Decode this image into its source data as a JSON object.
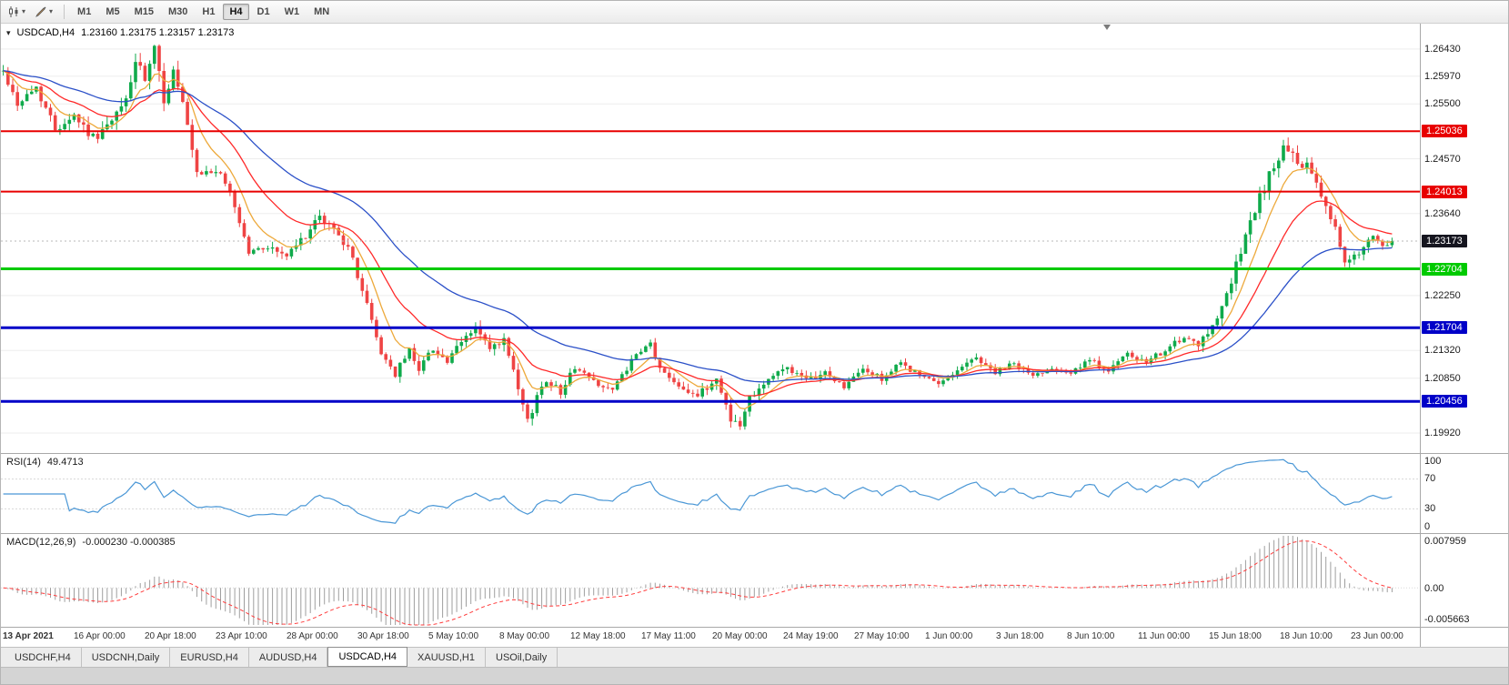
{
  "toolbar": {
    "icons": [
      "chart-type-icon",
      "drawing-tools-icon"
    ],
    "timeframes": [
      {
        "label": "M1",
        "active": false
      },
      {
        "label": "M5",
        "active": false
      },
      {
        "label": "M15",
        "active": false
      },
      {
        "label": "M30",
        "active": false
      },
      {
        "label": "H1",
        "active": false
      },
      {
        "label": "H4",
        "active": true
      },
      {
        "label": "D1",
        "active": false
      },
      {
        "label": "W1",
        "active": false
      },
      {
        "label": "MN",
        "active": false
      }
    ]
  },
  "chart": {
    "symbol_period": "USDCAD,H4",
    "ohlc": "1.23160 1.23175 1.23157 1.23173",
    "axis_min": 1.1958,
    "axis_max": 1.2686,
    "axis_ticks": [
      "1.26430",
      "1.25970",
      "1.25500",
      "1.24570",
      "1.23640",
      "1.22250",
      "1.21320",
      "1.20850",
      "1.19920"
    ],
    "hlines": [
      {
        "price": 1.25036,
        "label": "1.25036",
        "color": "#e80000",
        "width": 2
      },
      {
        "price": 1.24013,
        "label": "1.24013",
        "color": "#e80000",
        "width": 2
      },
      {
        "price": 1.22704,
        "label": "1.22704",
        "color": "#00ca00",
        "width": 3
      },
      {
        "price": 1.21704,
        "label": "1.21704",
        "color": "#0000c8",
        "width": 3
      },
      {
        "price": 1.20456,
        "label": "1.20456",
        "color": "#0000c8",
        "width": 3
      }
    ],
    "current_price": {
      "value": 1.23173,
      "label": "1.23173",
      "color": "#15151f"
    },
    "up_color": "#0faa4b",
    "down_color": "#ef4444",
    "mas": [
      {
        "period": 8,
        "color": "#eda93b"
      },
      {
        "period": 20,
        "color": "#ff2a2a"
      },
      {
        "period": 45,
        "color": "#2b50c8"
      }
    ]
  },
  "chart_data": {
    "type": "candlestick",
    "symbol": "USDCAD",
    "timeframe": "H4",
    "bars": 295,
    "seed": 42,
    "right_gap": 28,
    "y_range": [
      1.1958,
      1.2686
    ],
    "x_labels": [
      "13 Apr 2021",
      "16 Apr 00:00",
      "20 Apr 18:00",
      "23 Apr 10:00",
      "28 Apr 00:00",
      "30 Apr 18:00",
      "5 May 10:00",
      "8 May 00:00",
      "12 May 18:00",
      "17 May 11:00",
      "20 May 00:00",
      "24 May 19:00",
      "27 May 10:00",
      "1 Jun 00:00",
      "3 Jun 18:00",
      "8 Jun 10:00",
      "11 Jun 00:00",
      "15 Jun 18:00",
      "18 Jun 10:00",
      "23 Jun 00:00"
    ],
    "close_keypoints": [
      [
        0,
        1.2605
      ],
      [
        3,
        1.255
      ],
      [
        7,
        1.2578
      ],
      [
        11,
        1.2508
      ],
      [
        15,
        1.2532
      ],
      [
        19,
        1.2492
      ],
      [
        23,
        1.2518
      ],
      [
        26,
        1.2558
      ],
      [
        28,
        1.2622
      ],
      [
        30,
        1.2588
      ],
      [
        32,
        1.264
      ],
      [
        34,
        1.2558
      ],
      [
        36,
        1.2605
      ],
      [
        38,
        1.2548
      ],
      [
        41,
        1.2428
      ],
      [
        45,
        1.2438
      ],
      [
        48,
        1.2402
      ],
      [
        52,
        1.2298
      ],
      [
        56,
        1.2308
      ],
      [
        60,
        1.2292
      ],
      [
        63,
        1.2318
      ],
      [
        67,
        1.2356
      ],
      [
        71,
        1.2332
      ],
      [
        74,
        1.2286
      ],
      [
        77,
        1.2208
      ],
      [
        80,
        1.2128
      ],
      [
        83,
        1.2092
      ],
      [
        86,
        1.2132
      ],
      [
        88,
        1.2102
      ],
      [
        91,
        1.2136
      ],
      [
        94,
        1.2112
      ],
      [
        97,
        1.2146
      ],
      [
        100,
        1.2172
      ],
      [
        103,
        1.2132
      ],
      [
        106,
        1.2148
      ],
      [
        109,
        1.2064
      ],
      [
        111,
        1.201
      ],
      [
        113,
        1.2054
      ],
      [
        115,
        1.2084
      ],
      [
        118,
        1.2062
      ],
      [
        121,
        1.2104
      ],
      [
        125,
        1.208
      ],
      [
        129,
        1.2064
      ],
      [
        133,
        1.2114
      ],
      [
        137,
        1.2144
      ],
      [
        139,
        1.21
      ],
      [
        143,
        1.2074
      ],
      [
        147,
        1.2054
      ],
      [
        151,
        1.2084
      ],
      [
        154,
        1.2018
      ],
      [
        156,
        1.2002
      ],
      [
        158,
        1.2054
      ],
      [
        162,
        1.2084
      ],
      [
        166,
        1.2104
      ],
      [
        170,
        1.208
      ],
      [
        174,
        1.2094
      ],
      [
        178,
        1.207
      ],
      [
        182,
        1.21
      ],
      [
        186,
        1.2084
      ],
      [
        190,
        1.211
      ],
      [
        194,
        1.209
      ],
      [
        198,
        1.2074
      ],
      [
        202,
        1.21
      ],
      [
        206,
        1.212
      ],
      [
        210,
        1.2094
      ],
      [
        214,
        1.211
      ],
      [
        218,
        1.2088
      ],
      [
        222,
        1.2104
      ],
      [
        226,
        1.2094
      ],
      [
        230,
        1.2114
      ],
      [
        234,
        1.21
      ],
      [
        238,
        1.2124
      ],
      [
        242,
        1.211
      ],
      [
        246,
        1.2134
      ],
      [
        250,
        1.2152
      ],
      [
        253,
        1.2138
      ],
      [
        256,
        1.2176
      ],
      [
        259,
        1.2225
      ],
      [
        262,
        1.23
      ],
      [
        265,
        1.237
      ],
      [
        268,
        1.243
      ],
      [
        270,
        1.2462
      ],
      [
        272,
        1.2478
      ],
      [
        274,
        1.244
      ],
      [
        276,
        1.2448
      ],
      [
        278,
        1.241
      ],
      [
        280,
        1.2378
      ],
      [
        282,
        1.234
      ],
      [
        284,
        1.2278
      ],
      [
        286,
        1.229
      ],
      [
        288,
        1.2308
      ],
      [
        290,
        1.2322
      ],
      [
        292,
        1.2306
      ],
      [
        294,
        1.23173
      ]
    ],
    "volatility_keypoints": [
      [
        0,
        0.0014
      ],
      [
        26,
        0.002
      ],
      [
        34,
        0.0024
      ],
      [
        45,
        0.0014
      ],
      [
        60,
        0.0013
      ],
      [
        77,
        0.0017
      ],
      [
        90,
        0.0012
      ],
      [
        100,
        0.0013
      ],
      [
        109,
        0.0018
      ],
      [
        120,
        0.0011
      ],
      [
        140,
        0.001
      ],
      [
        154,
        0.0017
      ],
      [
        165,
        0.0011
      ],
      [
        200,
        0.0009
      ],
      [
        246,
        0.0011
      ],
      [
        258,
        0.0016
      ],
      [
        268,
        0.0022
      ],
      [
        276,
        0.002
      ],
      [
        286,
        0.0014
      ],
      [
        294,
        0.001
      ]
    ]
  },
  "rsi_panel": {
    "title": "RSI(14)",
    "value": "49.4713",
    "period": 14,
    "line_color": "#4a97d6",
    "levels": [
      {
        "value": 100,
        "label": "100",
        "dashed": false
      },
      {
        "value": 70,
        "label": "70",
        "dashed": true
      },
      {
        "value": 30,
        "label": "30",
        "dashed": true
      },
      {
        "value": 0,
        "label": "0",
        "dashed": false
      }
    ]
  },
  "macd_panel": {
    "title": "MACD(12,26,9)",
    "values": "-0.000230 -0.000385",
    "fast": 12,
    "slow": 26,
    "signal": 9,
    "range_min": -0.0062,
    "range_max": 0.0086,
    "hist_color": "#9e9e9e",
    "signal_color": "#ff3b3b",
    "axis": [
      {
        "value": 0.007959,
        "label": "0.007959"
      },
      {
        "value": 0,
        "label": "0.00"
      },
      {
        "value": -0.005663,
        "label": "-0.005663"
      }
    ]
  },
  "tabs": [
    {
      "label": "USDCHF,H4",
      "active": false
    },
    {
      "label": "USDCNH,Daily",
      "active": false
    },
    {
      "label": "EURUSD,H4",
      "active": false
    },
    {
      "label": "AUDUSD,H4",
      "active": false
    },
    {
      "label": "USDCAD,H4",
      "active": true
    },
    {
      "label": "XAUUSD,H1",
      "active": false
    },
    {
      "label": "USOil,Daily",
      "active": false
    }
  ]
}
